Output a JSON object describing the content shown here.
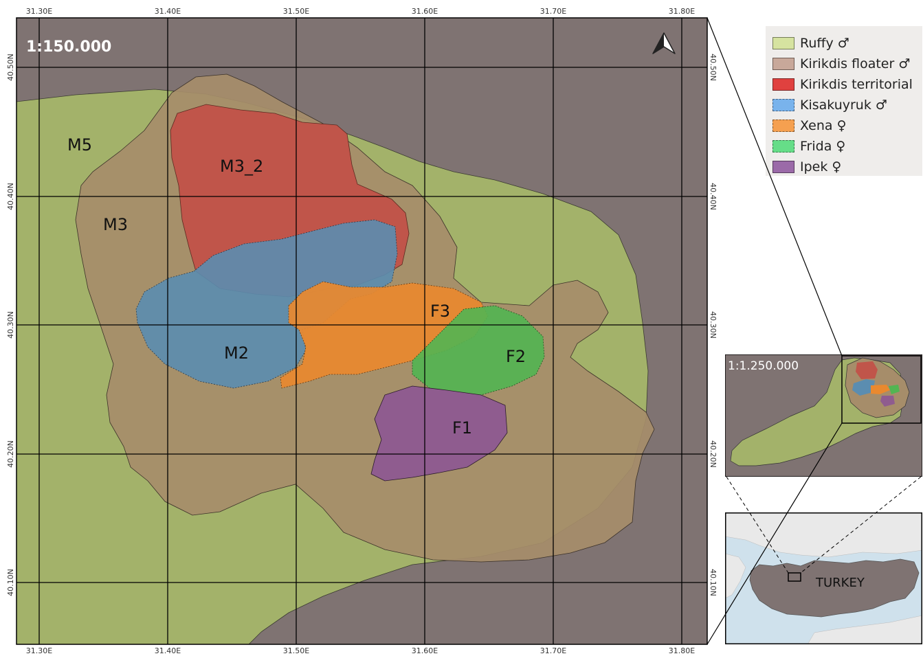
{
  "map": {
    "scale_label": "1:150.000",
    "north_arrow": "north-arrow-icon",
    "lon_labels": [
      "31.30E",
      "31.40E",
      "31.50E",
      "31.60E",
      "31.70E",
      "31.80E"
    ],
    "lat_labels": [
      "40.50N",
      "40.40N",
      "40.30N",
      "40.20N",
      "40.10N"
    ],
    "background_color": "#7f7372",
    "areas": [
      {
        "key": "M5",
        "label": "M5",
        "individual": "Ruffy",
        "color": "#a3b26a"
      },
      {
        "key": "M3",
        "label": "M3",
        "individual": "Kirikdis floater",
        "color": "#a68d6a"
      },
      {
        "key": "M3_2",
        "label": "M3_2",
        "individual": "Kirikdis territorial",
        "color": "#c0554a"
      },
      {
        "key": "M2",
        "label": "M2",
        "individual": "Kisakuyruk",
        "color": "#5b8db0"
      },
      {
        "key": "F3",
        "label": "F3",
        "individual": "Xena",
        "color": "#e9892f"
      },
      {
        "key": "F2",
        "label": "F2",
        "individual": "Frida",
        "color": "#52b552"
      },
      {
        "key": "F1",
        "label": "F1",
        "individual": "Ipek",
        "color": "#8f5c8f"
      }
    ]
  },
  "legend": {
    "items": [
      {
        "label": "Ruffy ♂",
        "color": "#d6e3a0"
      },
      {
        "label": "Kirikdis floater ♂",
        "color": "#c8a89a"
      },
      {
        "label": "Kirikdis territorial",
        "color": "#e0413f"
      },
      {
        "label": "Kisakuyruk ♂",
        "color": "#79b3ec"
      },
      {
        "label": "Xena ♀",
        "color": "#f5a050"
      },
      {
        "label": "Frida ♀",
        "color": "#66dd88"
      },
      {
        "label": "Ipek ♀",
        "color": "#9b6aa8"
      }
    ]
  },
  "inset": {
    "scale_label": "1:1.250.000"
  },
  "overview": {
    "country_label": "TURKEY",
    "sea_color": "#cfe1ec",
    "land_color": "#e9e9e9",
    "country_color": "#7f7372"
  }
}
